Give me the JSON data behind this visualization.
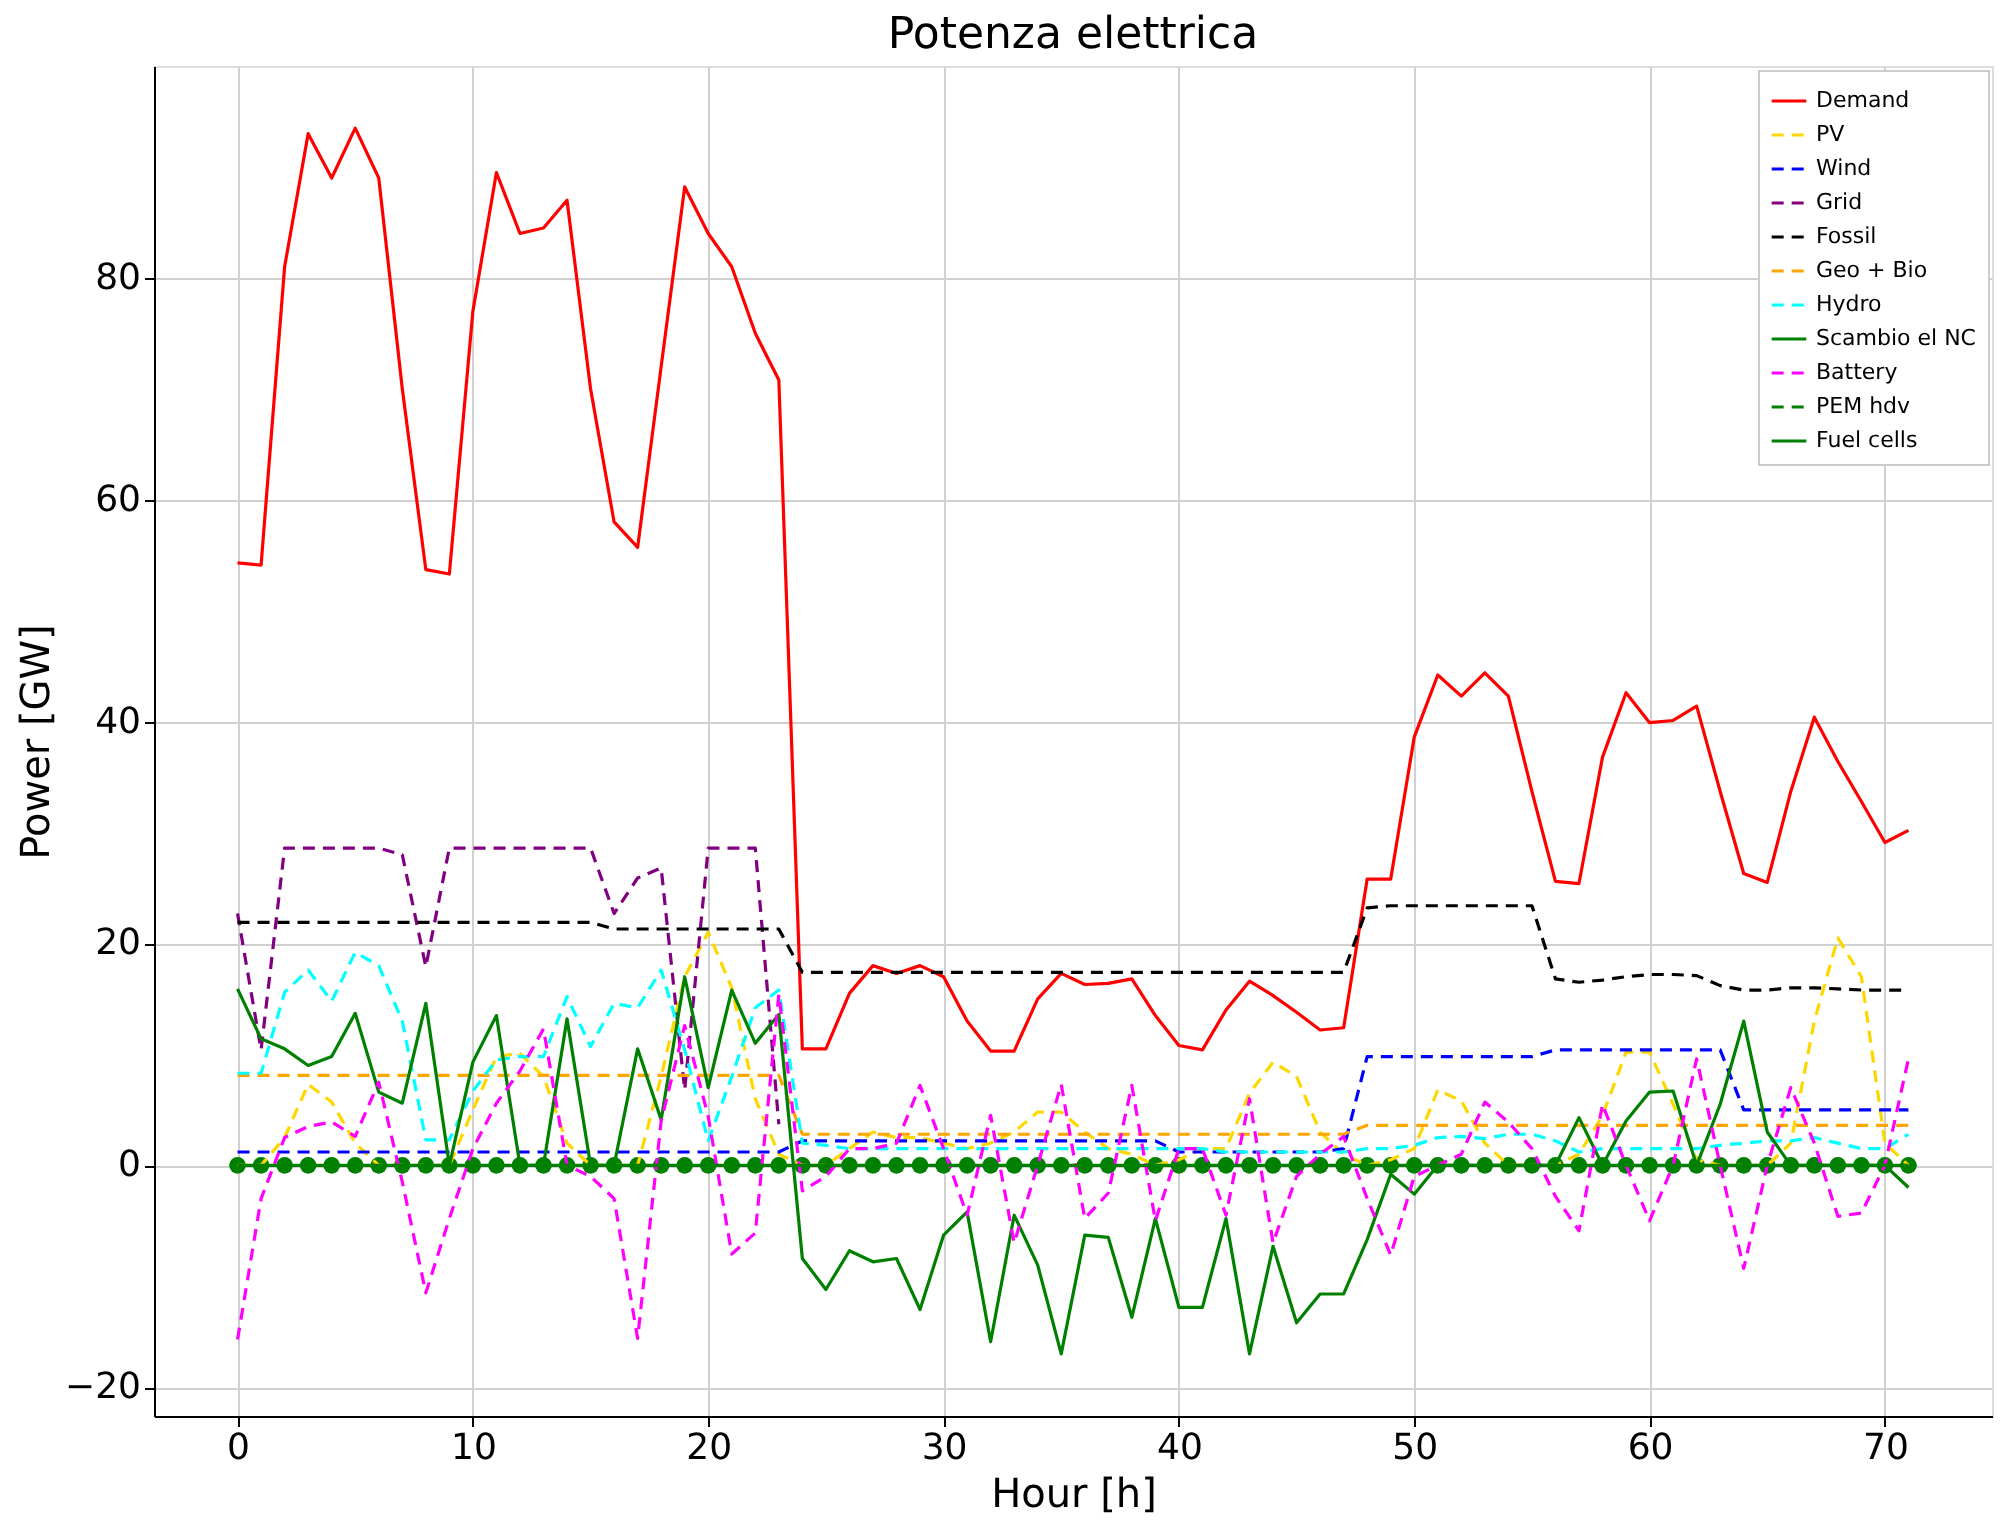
{
  "chart_data": {
    "type": "line",
    "title": "Potenza elettrica",
    "xlabel": "Hour [h]",
    "ylabel": "Power [GW]",
    "x": [
      0,
      1,
      2,
      3,
      4,
      5,
      6,
      7,
      8,
      9,
      10,
      11,
      12,
      13,
      14,
      15,
      16,
      17,
      18,
      19,
      20,
      21,
      22,
      23,
      24,
      25,
      26,
      27,
      28,
      29,
      30,
      31,
      32,
      33,
      34,
      35,
      36,
      37,
      38,
      39,
      40,
      41,
      42,
      43,
      44,
      45,
      46,
      47,
      48,
      49,
      50,
      51,
      52,
      53,
      54,
      55,
      56,
      57,
      58,
      59,
      60,
      61,
      62,
      63,
      64,
      65,
      66,
      67,
      68,
      69,
      70,
      71
    ],
    "xlim": [
      -3.55,
      74.55
    ],
    "xticks": [
      0,
      10,
      20,
      30,
      40,
      50,
      60,
      70
    ],
    "ylim": [
      -22.6,
      99.1
    ],
    "yticks": [
      -20,
      0,
      20,
      40,
      60,
      80
    ],
    "grid": true,
    "legend": "top right",
    "series": [
      {
        "name": "Demand",
        "color": "#ff0000",
        "line_style": "solid",
        "marker": "none",
        "values": [
          54.3,
          54.1,
          81,
          93,
          89,
          93.5,
          89,
          70,
          53.7,
          53.3,
          77,
          89.5,
          84,
          84.5,
          87,
          70,
          58,
          55.7,
          72,
          88.2,
          84,
          81,
          75,
          70.8,
          10.5,
          10.5,
          15.5,
          18,
          17.3,
          18,
          17,
          13,
          10.3,
          10.3,
          15,
          17.3,
          16.3,
          16.4,
          16.8,
          13.5,
          10.8,
          10.4,
          14,
          16.6,
          15.3,
          13.8,
          12.2,
          12.4,
          25.8,
          25.8,
          38.6,
          44.2,
          42.3,
          44.4,
          42.3,
          33.7,
          25.6,
          25.4,
          36.8,
          42.6,
          39.9,
          40.1,
          41.4,
          33.7,
          26.3,
          25.5,
          33.7,
          40.4,
          36.4,
          32.8,
          29.1,
          30.2
        ]
      },
      {
        "name": "PV",
        "color": "#ffd700",
        "line_style": "dashed",
        "marker": "none",
        "values": [
          0,
          0,
          2.5,
          7.3,
          5.7,
          2,
          0,
          0,
          0,
          0,
          5,
          9.8,
          10.1,
          8,
          2,
          0,
          0,
          0,
          8,
          17,
          21,
          16,
          6,
          1,
          0,
          0,
          1.5,
          3,
          2.5,
          2.5,
          2,
          1.5,
          2,
          3,
          4.8,
          4.8,
          3,
          1.5,
          1,
          0,
          0.5,
          1.5,
          1.5,
          6.5,
          9.3,
          8,
          3,
          1,
          0,
          0.5,
          1.5,
          6.8,
          5.8,
          2,
          0,
          0,
          0,
          1,
          4.5,
          10.2,
          10.2,
          5.5,
          0.5,
          0,
          0,
          0,
          2,
          13,
          20.5,
          17,
          2,
          0
        ]
      },
      {
        "name": "Wind",
        "color": "#0000ff",
        "line_style": "dashed",
        "marker": "none",
        "values": [
          1.2,
          1.2,
          1.2,
          1.2,
          1.2,
          1.2,
          1.2,
          1.2,
          1.2,
          1.2,
          1.2,
          1.2,
          1.2,
          1.2,
          1.2,
          1.2,
          1.2,
          1.2,
          1.2,
          1.2,
          1.2,
          1.2,
          1.2,
          1.2,
          2.2,
          2.2,
          2.2,
          2.2,
          2.2,
          2.2,
          2.2,
          2.2,
          2.2,
          2.2,
          2.2,
          2.2,
          2.2,
          2.2,
          2.2,
          2.2,
          1.2,
          1.2,
          1.2,
          1.2,
          1.2,
          1.2,
          1.2,
          1.5,
          9.8,
          9.8,
          9.8,
          9.8,
          9.8,
          9.8,
          9.8,
          9.8,
          10.4,
          10.4,
          10.4,
          10.4,
          10.4,
          10.4,
          10.4,
          10.4,
          5,
          5,
          5,
          5,
          5,
          5,
          5,
          5
        ]
      },
      {
        "name": "Grid",
        "color": "#800080",
        "line_style": "dashed",
        "marker": "none",
        "values": [
          22.7,
          10.4,
          28.6,
          28.6,
          28.6,
          28.6,
          28.6,
          28,
          17.9,
          28.6,
          28.6,
          28.6,
          28.6,
          28.6,
          28.6,
          28.6,
          22.7,
          25.9,
          26.8,
          6.8,
          28.6,
          28.6,
          28.6,
          3.7,
          null,
          null,
          null,
          null,
          null,
          null,
          null,
          null,
          null,
          null,
          null,
          null,
          null,
          null,
          null,
          null,
          null,
          null,
          null,
          null,
          null,
          null,
          null,
          null,
          null,
          null,
          null,
          null,
          null,
          null,
          null,
          null,
          null,
          null,
          null,
          null,
          null,
          null,
          null,
          null,
          null,
          null,
          null,
          null,
          null,
          null,
          null,
          null
        ]
      },
      {
        "name": "Fossil",
        "color": "#000000",
        "line_style": "dashed",
        "marker": "none",
        "values": [
          21.9,
          21.9,
          21.9,
          21.9,
          21.9,
          21.9,
          21.9,
          21.9,
          21.9,
          21.9,
          21.9,
          21.9,
          21.9,
          21.9,
          21.9,
          21.9,
          21.3,
          21.3,
          21.3,
          21.3,
          21.3,
          21.3,
          21.3,
          21.3,
          17.4,
          17.4,
          17.4,
          17.4,
          17.4,
          17.4,
          17.4,
          17.4,
          17.4,
          17.4,
          17.4,
          17.4,
          17.4,
          17.4,
          17.4,
          17.4,
          17.4,
          17.4,
          17.4,
          17.4,
          17.4,
          17.4,
          17.4,
          17.4,
          23.2,
          23.4,
          23.4,
          23.4,
          23.4,
          23.4,
          23.4,
          23.4,
          16.8,
          16.5,
          16.7,
          17,
          17.2,
          17.2,
          17.1,
          16.2,
          15.8,
          15.8,
          16,
          16,
          15.9,
          15.8,
          15.8,
          15.8
        ]
      },
      {
        "name": "Geo + Bio",
        "color": "#ffa500",
        "line_style": "dashed",
        "marker": "none",
        "values": [
          8.1,
          8.1,
          8.1,
          8.1,
          8.1,
          8.1,
          8.1,
          8.1,
          8.1,
          8.1,
          8.1,
          8.1,
          8.1,
          8.1,
          8.1,
          8.1,
          8.1,
          8.1,
          8.1,
          8.1,
          8.1,
          8.1,
          8.1,
          8.1,
          2.8,
          2.8,
          2.8,
          2.8,
          2.8,
          2.8,
          2.8,
          2.8,
          2.8,
          2.8,
          2.8,
          2.8,
          2.8,
          2.8,
          2.8,
          2.8,
          2.8,
          2.8,
          2.8,
          2.8,
          2.8,
          2.8,
          2.8,
          2.8,
          3.6,
          3.6,
          3.6,
          3.6,
          3.6,
          3.6,
          3.6,
          3.6,
          3.6,
          3.6,
          3.6,
          3.6,
          3.6,
          3.6,
          3.6,
          3.6,
          3.6,
          3.6,
          3.6,
          3.6,
          3.6,
          3.6,
          3.6,
          3.6
        ]
      },
      {
        "name": "Hydro",
        "color": "#00ffff",
        "line_style": "dashed",
        "marker": "none",
        "values": [
          8.3,
          8.3,
          15.6,
          17.6,
          14.8,
          19.2,
          18,
          13,
          2.3,
          2.3,
          6.7,
          9.5,
          9.8,
          9.8,
          15.2,
          10.7,
          14.6,
          14.2,
          17.6,
          10.4,
          2.2,
          8,
          14.2,
          15.8,
          2,
          1.8,
          1.5,
          1.5,
          1.5,
          1.5,
          1.5,
          1.5,
          1.5,
          1.5,
          1.5,
          1.5,
          1.5,
          1.5,
          1.5,
          1.5,
          1.5,
          1.5,
          1.2,
          1.2,
          1.2,
          1.2,
          1.2,
          1.2,
          1.5,
          1.5,
          1.8,
          2.5,
          2.6,
          2.4,
          2.8,
          2.8,
          2.2,
          1.2,
          1.5,
          1.5,
          1.5,
          1.5,
          1.5,
          1.8,
          2,
          2.2,
          2.2,
          2.5,
          2,
          1.5,
          1.5,
          2.8
        ]
      },
      {
        "name": "Scambio el NC",
        "color": "#008000",
        "line_style": "solid",
        "marker": "none",
        "values": [
          15.9,
          11.4,
          10.5,
          9,
          9.8,
          13.7,
          6.6,
          5.6,
          14.6,
          0,
          9.3,
          13.5,
          0,
          0,
          13.2,
          0,
          0,
          10.5,
          4.1,
          17,
          7,
          15.8,
          11,
          13.6,
          -8.4,
          -11.2,
          -7.7,
          -8.7,
          -8.4,
          -13,
          -6.3,
          -4.2,
          -15.9,
          -4.5,
          -9,
          -17,
          -6.3,
          -6.5,
          -13.7,
          -4.8,
          -12.8,
          -12.8,
          -4.8,
          -17,
          -7.3,
          -14.2,
          -11.6,
          -11.6,
          -6.7,
          -0.8,
          -2.6,
          0,
          0,
          0,
          0,
          0,
          0,
          4.3,
          0,
          4,
          6.6,
          6.7,
          0,
          5.5,
          13,
          3,
          0,
          0,
          0,
          0,
          0,
          -2
        ]
      },
      {
        "name": "Battery",
        "color": "#ff00ff",
        "line_style": "dashed",
        "marker": "none",
        "values": [
          -15.7,
          -3,
          2.5,
          3.5,
          3.9,
          2.6,
          7.5,
          -1.5,
          -11.5,
          -4.8,
          1.5,
          5.6,
          8.5,
          12.3,
          0,
          -1,
          -3,
          -15.6,
          4,
          12.6,
          4.4,
          -8,
          -6.1,
          15.4,
          -2.3,
          -1,
          1.5,
          1.5,
          2,
          7.2,
          1.5,
          -4.5,
          4.5,
          -7,
          0,
          7.3,
          -4.8,
          -2.5,
          7.2,
          -5,
          1.5,
          1.5,
          -4.5,
          6,
          -7,
          -1,
          1,
          2.6,
          -3,
          -8.1,
          -1,
          0,
          1,
          5.7,
          3.9,
          1.5,
          -2.8,
          -5.9,
          5.5,
          0,
          -5,
          0,
          9.6,
          0,
          -9.3,
          0,
          7,
          2,
          -4.6,
          -4.3,
          0,
          9.6
        ]
      },
      {
        "name": "PEM hdv",
        "color": "#008000",
        "line_style": "dashed",
        "marker": "cross",
        "values": [
          null,
          null,
          null,
          null,
          null,
          null,
          null,
          null,
          null,
          null,
          null,
          null,
          null,
          null,
          null,
          null,
          null,
          null,
          null,
          null,
          null,
          null,
          null,
          null,
          null,
          null,
          null,
          null,
          null,
          null,
          null,
          null,
          null,
          null,
          null,
          null,
          null,
          null,
          null,
          null,
          null,
          null,
          null,
          null,
          null,
          null,
          null,
          null,
          null,
          null,
          null,
          null,
          null,
          null,
          null,
          null,
          null,
          null,
          null,
          null,
          null,
          null,
          null,
          null,
          null,
          null,
          null,
          null,
          null,
          null,
          null,
          null
        ]
      },
      {
        "name": "Fuel cells",
        "color": "#008000",
        "line_style": "solid",
        "marker": "circle",
        "values": [
          0,
          0,
          0,
          0,
          0,
          0,
          0,
          0,
          0,
          0,
          0,
          0,
          0,
          0,
          0,
          0,
          0,
          0,
          0,
          0,
          0,
          0,
          0,
          0,
          0,
          0,
          0,
          0,
          0,
          0,
          0,
          0,
          0,
          0,
          0,
          0,
          0,
          0,
          0,
          0,
          0,
          0,
          0,
          0,
          0,
          0,
          0,
          0,
          0,
          0,
          0,
          0,
          0,
          0,
          0,
          0,
          0,
          0,
          0,
          0,
          0,
          0,
          0,
          0,
          0,
          0,
          0,
          0,
          0,
          0,
          0,
          0
        ]
      }
    ]
  }
}
